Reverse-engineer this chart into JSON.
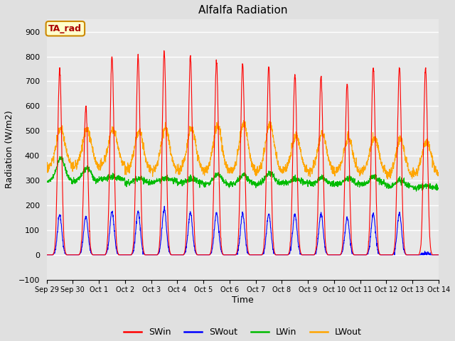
{
  "title": "Alfalfa Radiation",
  "xlabel": "Time",
  "ylabel": "Radiation (W/m2)",
  "ylim": [
    -100,
    950
  ],
  "yticks": [
    -100,
    0,
    100,
    200,
    300,
    400,
    500,
    600,
    700,
    800,
    900
  ],
  "background_color": "#e0e0e0",
  "plot_bg_color": "#e8e8e8",
  "grid_color": "#ffffff",
  "legend_items": [
    "SWin",
    "SWout",
    "LWin",
    "LWout"
  ],
  "legend_colors": [
    "#ff0000",
    "#0000ff",
    "#00bb00",
    "#ffa500"
  ],
  "annotation_text": "TA_rad",
  "annotation_bg": "#ffffcc",
  "annotation_border": "#cc8800",
  "annotation_text_color": "#aa0000",
  "n_days": 15,
  "SWin_peak": [
    750,
    600,
    800,
    800,
    820,
    800,
    780,
    770,
    760,
    730,
    720,
    690,
    760,
    760,
    755
  ],
  "SWout_peak": [
    160,
    155,
    175,
    175,
    185,
    170,
    168,
    165,
    165,
    165,
    165,
    150,
    165,
    168,
    5
  ],
  "LWin_base": [
    295,
    295,
    305,
    290,
    295,
    290,
    285,
    285,
    285,
    290,
    285,
    285,
    285,
    275,
    270
  ],
  "LWin_peak": [
    390,
    350,
    315,
    310,
    310,
    305,
    325,
    325,
    330,
    305,
    310,
    310,
    315,
    300,
    280
  ],
  "LWout_base": [
    355,
    355,
    360,
    340,
    340,
    340,
    335,
    335,
    335,
    340,
    335,
    335,
    335,
    320,
    325
  ],
  "LWout_peak": [
    510,
    510,
    505,
    500,
    510,
    510,
    520,
    530,
    525,
    480,
    490,
    470,
    475,
    465,
    460
  ],
  "x_tick_labels": [
    "Sep 29",
    "Sep 30",
    "Oct 1",
    "Oct 2",
    "Oct 3",
    "Oct 4",
    "Oct 5",
    "Oct 6",
    "Oct 7",
    "Oct 8",
    "Oct 9",
    "Oct 10",
    "Oct 11",
    "Oct 12",
    "Oct 13",
    "Oct 14"
  ],
  "figsize": [
    6.4,
    4.8
  ],
  "dpi": 100
}
